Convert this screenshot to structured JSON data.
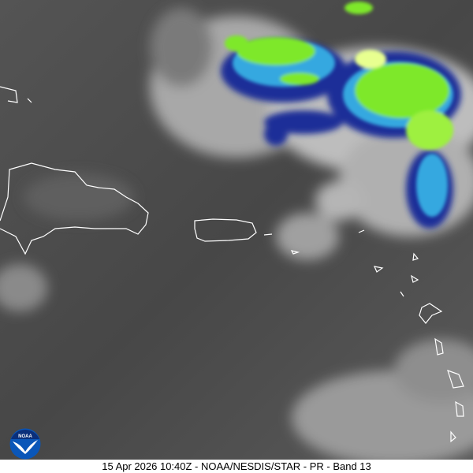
{
  "image": {
    "type": "satellite-infrared",
    "caption": "15 Apr 2026 10:40Z - NOAA/NESDIS/STAR - PR - Band 13",
    "logo_text": "NOAA",
    "colors": {
      "background_gray": "#4a4a4a",
      "cloud_light": "#d8d8d8",
      "cold_top_blue": "#1a2f9a",
      "cold_top_cyan": "#3fb8e8",
      "cold_top_green": "#7ef02a",
      "coastline": "#ffffff"
    }
  }
}
